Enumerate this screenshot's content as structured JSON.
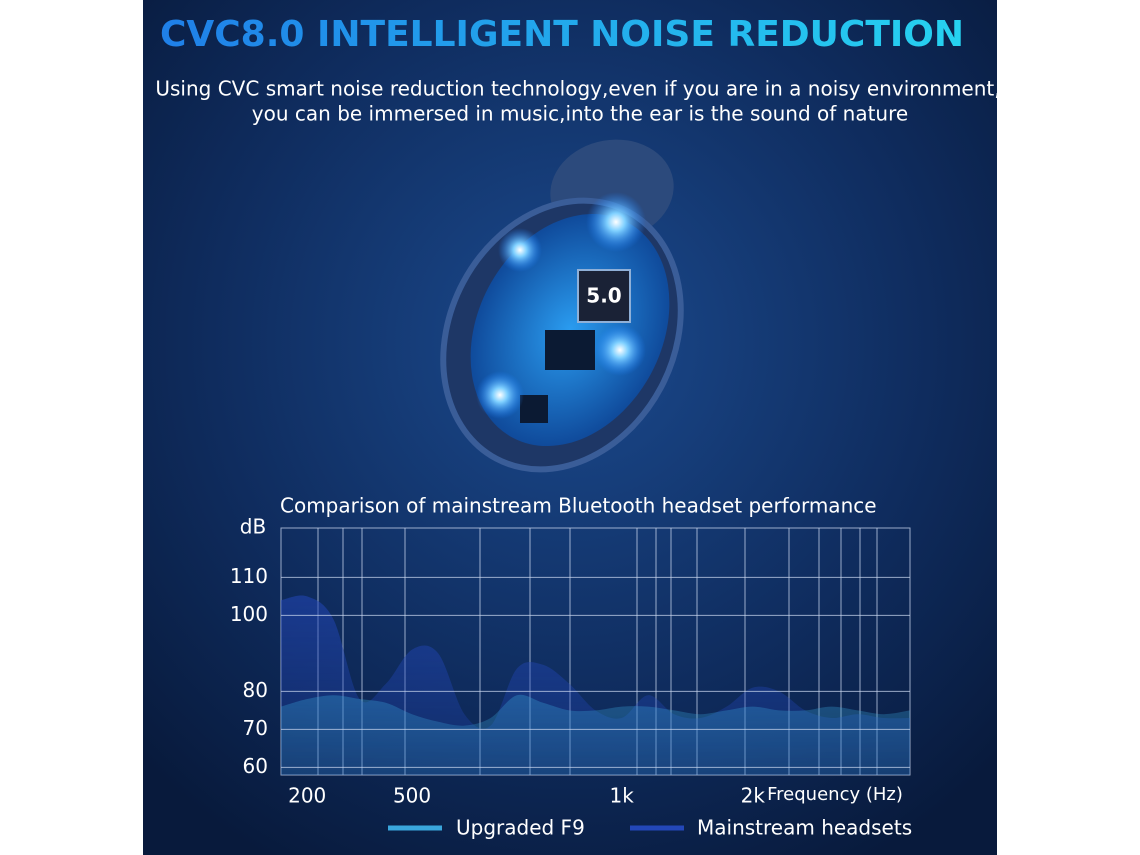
{
  "chart_data": {
    "type": "area",
    "headline": "CVC8.0 INTELLIGENT NOISE REDUCTION",
    "subtitle": [
      "Using CVC smart noise reduction technology,even if you are in a noisy environment,",
      "you can be immersed in music,into the ear is the sound of nature"
    ],
    "annotations": [
      "5.0"
    ],
    "title": "Comparison of mainstream Bluetooth headset performance",
    "y_label": "dB",
    "x_label": "Frequency (Hz)",
    "categories": [
      null,
      "200",
      null,
      null,
      null,
      "500",
      null,
      null,
      null,
      null,
      null,
      null,
      null,
      "1k",
      null,
      null,
      null,
      null,
      "2k",
      null,
      null,
      null,
      null,
      null,
      null
    ],
    "series": [
      {
        "name": "Mainstream headsets",
        "color": "#2347b8",
        "values": [
          104,
          105,
          99,
          78,
          82,
          91,
          90,
          74,
          71,
          86,
          87,
          82,
          75,
          73,
          79,
          74,
          73,
          76,
          81,
          80,
          75,
          73,
          74,
          73,
          73
        ]
      },
      {
        "name": "Upgraded F9",
        "color": "#3aa6dc",
        "values": [
          76,
          78,
          79,
          78,
          77,
          74,
          72,
          71,
          73,
          79,
          77,
          75,
          75,
          76,
          76,
          75,
          74,
          75,
          76,
          75,
          75,
          76,
          75,
          74,
          75
        ]
      }
    ],
    "ylim": [
      58,
      123
    ],
    "yticks": [
      60,
      70,
      80,
      100,
      110
    ],
    "grid": true
  }
}
